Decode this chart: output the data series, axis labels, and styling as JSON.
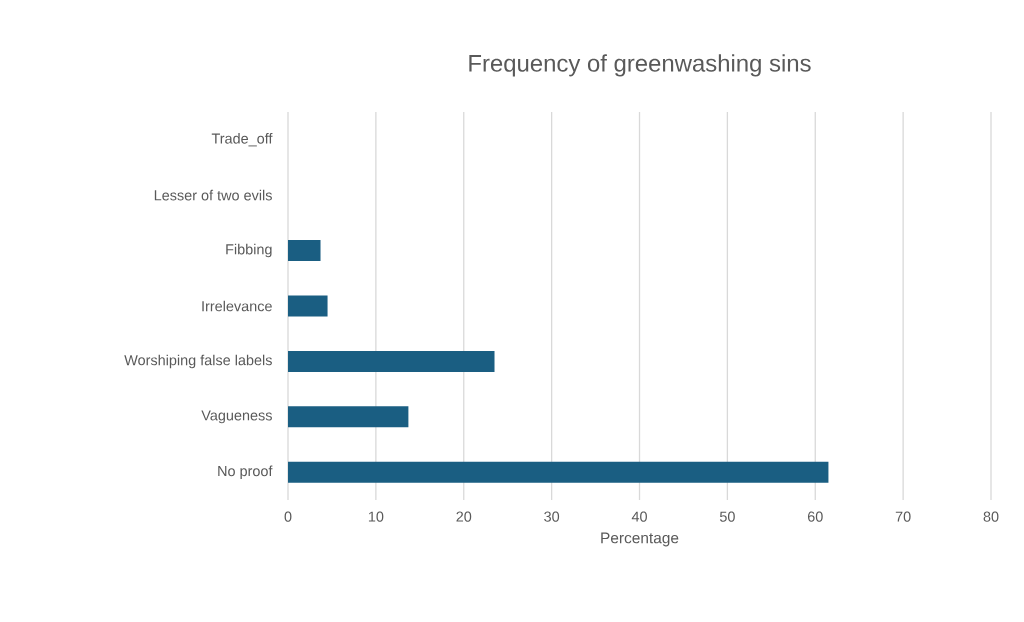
{
  "chart_data": {
    "type": "bar",
    "orientation": "horizontal",
    "title": "Frequency of greenwashing sins",
    "xlabel": "Percentage",
    "categories": [
      "Trade_off",
      "Lesser of two evils",
      "Fibbing",
      "Irrelevance",
      "Worshiping false labels",
      "Vagueness",
      "No proof"
    ],
    "values": [
      0,
      0,
      3.7,
      4.5,
      23.5,
      13.7,
      61.5
    ],
    "color": "#1a5e82",
    "xlim": [
      0,
      80
    ],
    "xticks": [
      0,
      10,
      20,
      30,
      40,
      50,
      60,
      70,
      80
    ],
    "grid": "x"
  }
}
